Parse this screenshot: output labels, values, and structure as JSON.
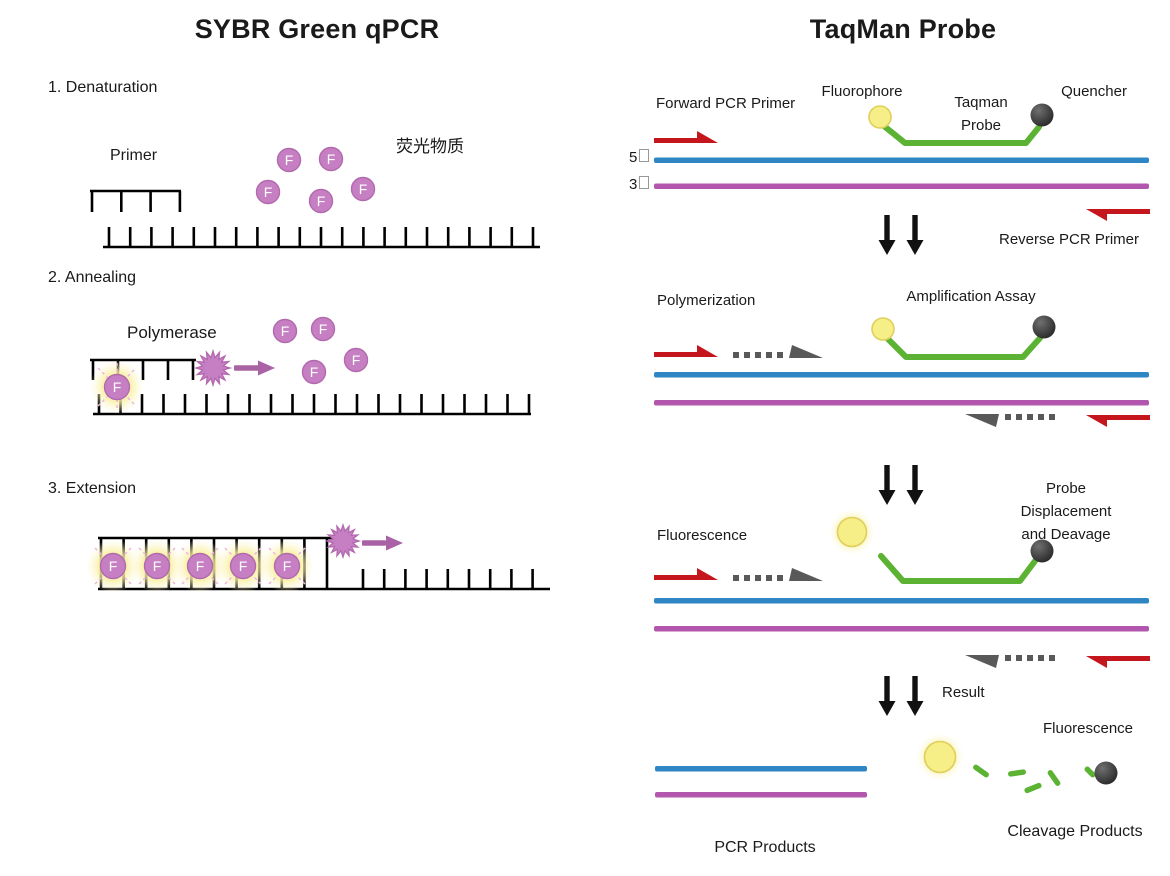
{
  "titles": {
    "left": "SYBR Green qPCR",
    "right": "TaqMan Probe"
  },
  "sybr": {
    "step1": "1. Denaturation",
    "step2": "2. Annealing",
    "step3": "3. Extension",
    "primer_label": "Primer",
    "dye_label": "荧光物质",
    "polymerase_label": "Polymerase",
    "f_label": "F"
  },
  "taqman": {
    "forward_primer": "Forward PCR Primer",
    "fluorophore": "Fluorophore",
    "probe_line1": "Taqman",
    "probe_line2": "Probe",
    "quencher": "Quencher",
    "five_prime": "5",
    "three_prime": "3",
    "reverse_primer": "Reverse PCR Primer",
    "polymerization": "Polymerization",
    "amplification": "Amplification Assay",
    "fluorescence": "Fluorescence",
    "displacement_line1": "Probe Displacement",
    "displacement_line2": "and Deavage",
    "result": "Result",
    "fluorescence_result": "Fluorescence",
    "pcr_products": "PCR Products",
    "cleavage_products": "Cleavage Products"
  },
  "colors": {
    "red": "#C4161C",
    "blue": "#2E86C4",
    "purple": "#B357AE",
    "green": "#5CB233",
    "yellow": "#F6EE86",
    "yellow_edge": "#DFCF5C",
    "orchid": "#C67FC2",
    "orchid_edge": "#B269AE",
    "arrow_purple": "#A963A5",
    "gray": "#595959",
    "ink": "#111111",
    "text": "#1a1a1a"
  }
}
